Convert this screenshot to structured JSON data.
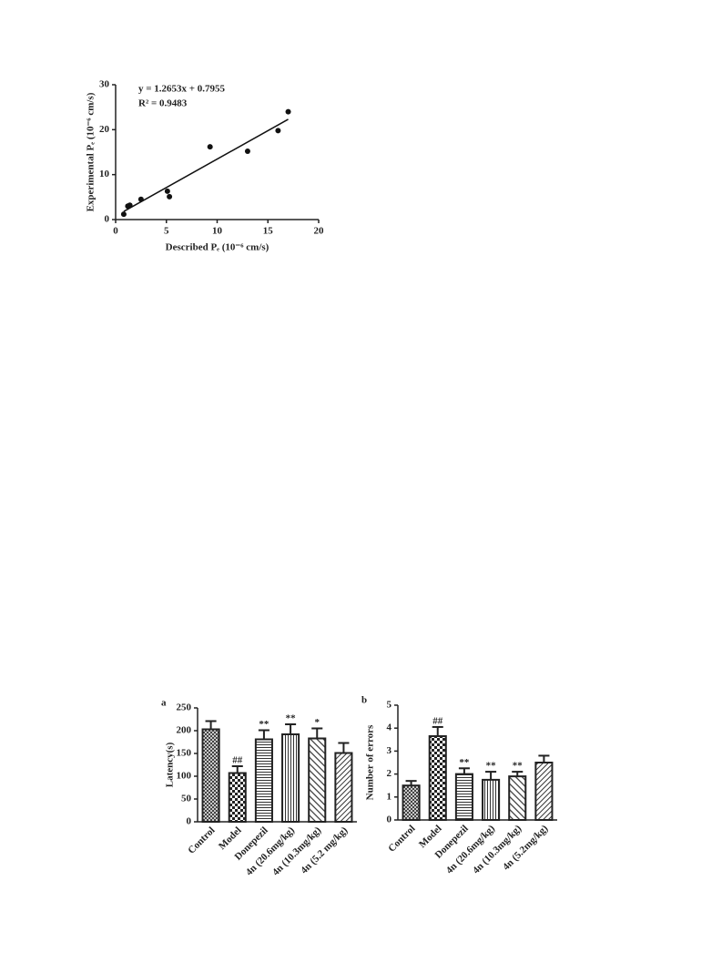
{
  "chart_data": [
    {
      "type": "scatter",
      "x_label": "Described Pₑ (10⁻⁶ cm/s)",
      "y_label": "Experimental Pₑ (10⁻⁶ cm/s)",
      "annotations": [
        "y = 1.2653x + 0.7955",
        "R² = 0.9483"
      ],
      "fit": {
        "slope": 1.2653,
        "intercept": 0.7955
      },
      "x": [
        0.8,
        1.2,
        1.4,
        2.5,
        5.1,
        5.3,
        9.3,
        13.0,
        16.0,
        17.0
      ],
      "y": [
        1.2,
        3.0,
        3.2,
        4.5,
        6.3,
        5.1,
        16.2,
        15.2,
        19.8,
        24.0
      ],
      "color": "#111111",
      "xlim": [
        0,
        20
      ],
      "xticks": [
        0,
        5,
        10,
        15,
        20
      ],
      "ylim": [
        0,
        30
      ],
      "yticks": [
        0,
        10,
        20,
        30
      ]
    },
    {
      "type": "bar",
      "panel_label": "a",
      "y_label": "Latency(s)",
      "categories": [
        "Control",
        "Model",
        "Donepezil",
        "4n (20.6mg/kg)",
        "4n (10.3mg/kg)",
        "4n (5.2 mg/kg)"
      ],
      "values": [
        203,
        107,
        181,
        192,
        183,
        151
      ],
      "errors": [
        18,
        15,
        20,
        22,
        22,
        22
      ],
      "significance": [
        null,
        "##",
        "**",
        "**",
        "*",
        null
      ],
      "ylim": [
        0,
        250
      ],
      "yticks": [
        0,
        50,
        100,
        150,
        200,
        250
      ]
    },
    {
      "type": "bar",
      "panel_label": "b",
      "y_label": "Number of errors",
      "categories": [
        "Control",
        "Model",
        "Donepezil",
        "4n (20.6mg/kg)",
        "4n (10.3mg/kg)",
        "4n (5.2mg/kg)"
      ],
      "values": [
        1.5,
        3.65,
        2.0,
        1.75,
        1.9,
        2.5
      ],
      "errors": [
        0.2,
        0.4,
        0.25,
        0.35,
        0.2,
        0.3
      ],
      "significance": [
        null,
        "##",
        "**",
        "**",
        "**",
        null
      ],
      "ylim": [
        0,
        5
      ],
      "yticks": [
        0,
        1,
        2,
        3,
        4,
        5
      ]
    }
  ]
}
